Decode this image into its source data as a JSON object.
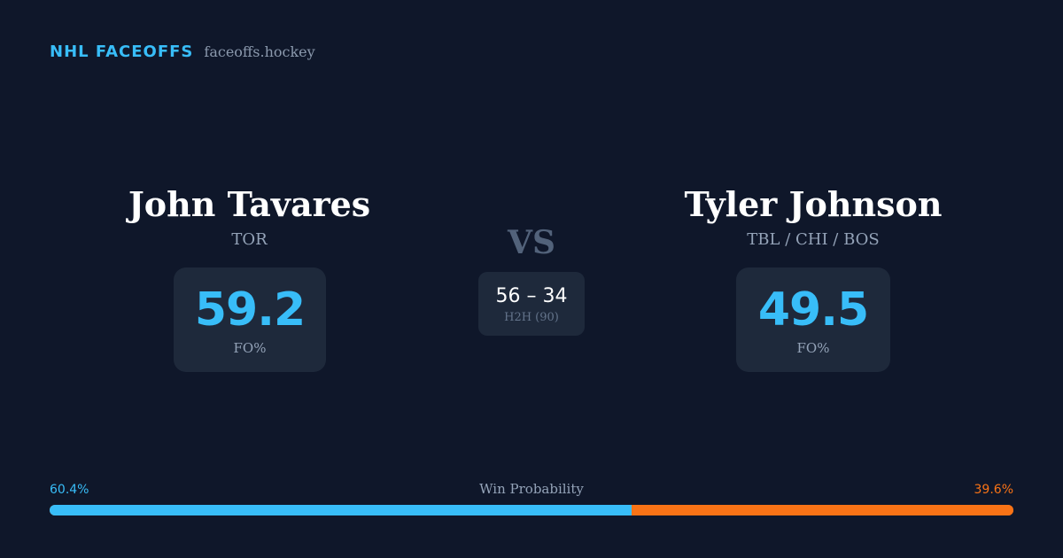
{
  "brand": {
    "name": "NHL FACEOFFS",
    "site": "faceoffs.hockey"
  },
  "players": {
    "left": {
      "name": "John Tavares",
      "team": "TOR",
      "fo_value": "59.2",
      "fo_label": "FO%"
    },
    "right": {
      "name": "Tyler Johnson",
      "team": "TBL / CHI / BOS",
      "fo_value": "49.5",
      "fo_label": "FO%"
    }
  },
  "vs_label": "VS",
  "h2h": {
    "score": "56 – 34",
    "label": "H2H (90)"
  },
  "win_probability": {
    "title": "Win Probability",
    "left_label": "60.4%",
    "right_label": "39.6%",
    "left_fraction": 0.604,
    "right_fraction": 0.396
  },
  "colors": {
    "background": "#0f172a",
    "card": "#1e293b",
    "accent_blue": "#38bdf8",
    "accent_orange": "#f97316"
  }
}
